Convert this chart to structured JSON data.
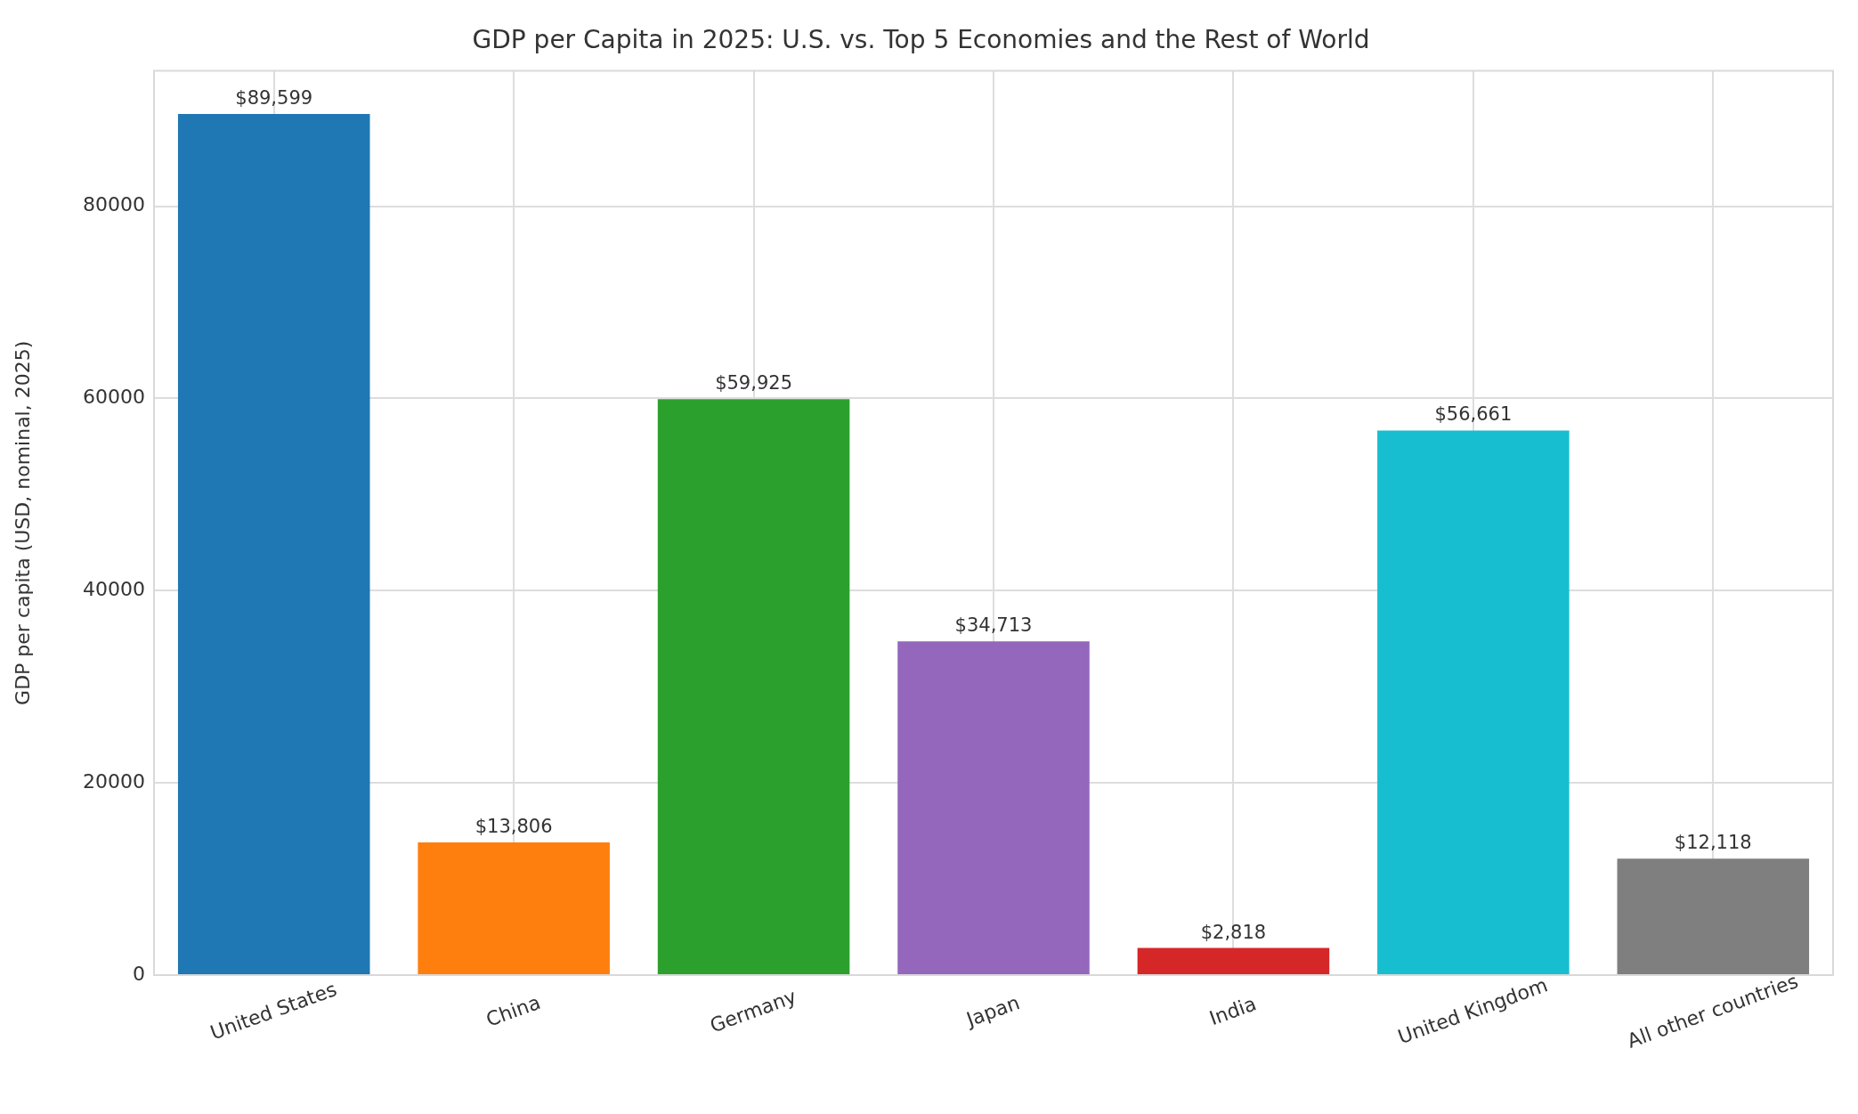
{
  "chart_data": {
    "type": "bar",
    "title": "GDP per Capita in 2025: U.S. vs. Top 5 Economies and the Rest of World",
    "ylabel": "GDP per capita (USD, nominal, 2025)",
    "categories": [
      "United States",
      "China",
      "Germany",
      "Japan",
      "India",
      "United Kingdom",
      "All other countries"
    ],
    "values": [
      89599,
      13806,
      59925,
      34713,
      2818,
      56661,
      12118
    ],
    "colors": [
      "#1f77b4",
      "#ff7f0e",
      "#2ca02c",
      "#9467bd",
      "#d62728",
      "#17becf",
      "#7f7f7f"
    ],
    "value_labels": [
      "$89,599",
      "$13,806",
      "$59,925",
      "$34,713",
      "$2,818",
      "$56,661",
      "$12,118"
    ],
    "ylim": [
      0,
      94079
    ],
    "yticks": [
      0,
      20000,
      40000,
      60000,
      80000
    ],
    "grid": true,
    "legend": false
  }
}
